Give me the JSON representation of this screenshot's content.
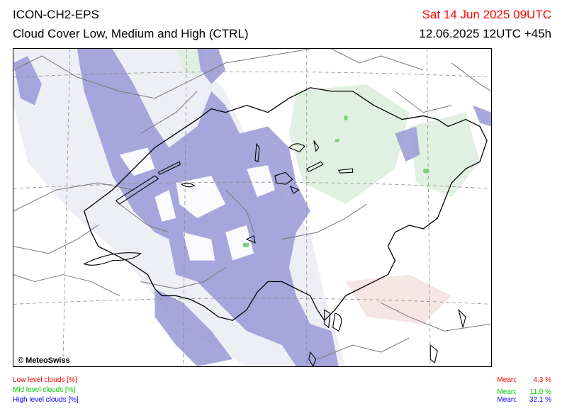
{
  "header": {
    "model": "ICON-CH2-EPS",
    "product": "Cloud Cover Low, Medium and High (CTRL)",
    "valid_time": "Sat 14 Jun 2025 09UTC",
    "run_time": "12.06.2025 12UTC +45h"
  },
  "map": {
    "copyright": "© MeteoSwiss"
  },
  "legend": {
    "low": {
      "label": "Low level clouds [%]",
      "color": "#ff0000",
      "mean_label": "Mean:",
      "mean_value": "4.3 %"
    },
    "mid": {
      "label": "Mid level clouds [%]",
      "color": "#00cc00",
      "mean_label": "Mean:",
      "mean_value": "11.0 %"
    },
    "high": {
      "label": "High level clouds [%]",
      "color": "#0000ff",
      "mean_label": "Mean:",
      "mean_value": "32.1 %"
    }
  },
  "colors": {
    "valid_time": "#ff0000",
    "high_cloud_fill": "#9c9cd8",
    "mid_cloud_fill": "#dcefdc",
    "low_cloud_fill": "#f3dede"
  }
}
